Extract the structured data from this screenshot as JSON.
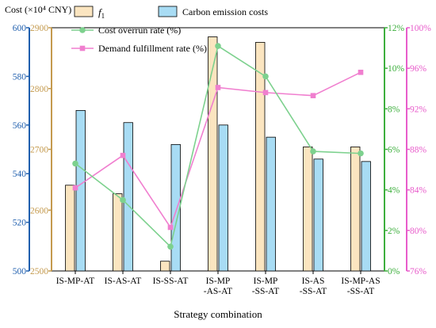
{
  "chart_data": {
    "type": "bar",
    "categories": [
      "IS-MP-AT",
      "IS-AS-AT",
      "IS-SS-AT",
      "IS-MP-AS-AT",
      "IS-MP-SS-AT",
      "IS-AS-SS-AT",
      "IS-MP-AS-SS-AT"
    ],
    "category_labels": [
      [
        "IS-MP-AT"
      ],
      [
        "IS-AS-AT"
      ],
      [
        "IS-SS-AT"
      ],
      [
        "IS-MP",
        "-AS-AT"
      ],
      [
        "IS-MP",
        "-SS-AT"
      ],
      [
        "IS-AS",
        "-SS-AT"
      ],
      [
        "IS-MP-AS",
        "-SS-AT"
      ]
    ],
    "xlabel": "Strategy combination",
    "ylabel": "Cost (×10⁴ CNY)",
    "series": [
      {
        "name": "f1",
        "type": "bar",
        "axis": "f1",
        "color": "#fbe5c0",
        "values": [
          2641,
          2627,
          2516,
          2885,
          2876,
          2704,
          2704
        ]
      },
      {
        "name": "Carbon emission costs",
        "type": "bar",
        "axis": "carbon",
        "color": "#a8dcf4",
        "values": [
          566,
          561,
          552,
          560,
          555,
          546,
          545
        ]
      },
      {
        "name": "Cost overrun rate (%)",
        "type": "line",
        "axis": "overrun",
        "color": "#7dd18e",
        "values": [
          5.3,
          3.5,
          1.2,
          11.1,
          9.6,
          5.9,
          5.8
        ]
      },
      {
        "name": "Demand fulfillment rate (%)",
        "type": "line",
        "axis": "demand",
        "color": "#f07fcf",
        "values": [
          84.2,
          87.4,
          80.3,
          94.1,
          93.6,
          93.3,
          95.6
        ]
      }
    ],
    "axes": {
      "f1": {
        "min": 2500,
        "max": 2900,
        "ticks": [
          "2500",
          "2600",
          "2700",
          "2800",
          "2900"
        ],
        "color": "#c49a4e"
      },
      "carbon": {
        "min": 500,
        "max": 600,
        "ticks": [
          "500",
          "520",
          "540",
          "560",
          "580",
          "600"
        ],
        "color": "#1f5fae"
      },
      "overrun": {
        "min": 0,
        "max": 12,
        "ticks": [
          "0%",
          "2%",
          "4%",
          "6%",
          "8%",
          "10%",
          "12%"
        ],
        "color": "#3daf3d"
      },
      "demand": {
        "min": 76,
        "max": 100,
        "ticks": [
          "76%",
          "80%",
          "84%",
          "88%",
          "92%",
          "96%",
          "100%"
        ],
        "color": "#e85ccb"
      }
    },
    "legend": {
      "placement": "top",
      "f1_label": "f",
      "f1_sub": "1",
      "carbon_label": "Carbon emission costs",
      "overrun_label": "Cost overrun rate (%)",
      "demand_label": "Demand fulfillment rate (%)"
    },
    "grid": false
  }
}
